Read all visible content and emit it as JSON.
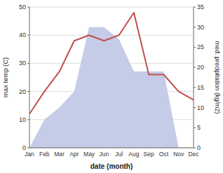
{
  "chart_data": {
    "type": "line",
    "categories": [
      "Jan",
      "Feb",
      "Mar",
      "Apr",
      "May",
      "Jun",
      "Jul",
      "Aug",
      "Sep",
      "Oct",
      "Nov",
      "Dec"
    ],
    "series": [
      {
        "type": "area",
        "axis": "y2",
        "color": "#c5cce8",
        "values": [
          0,
          7,
          10,
          14,
          30,
          30,
          27,
          19,
          19,
          19,
          0,
          0
        ]
      },
      {
        "type": "line",
        "color": "#c0504d",
        "values": [
          12,
          20,
          27,
          38,
          40,
          38,
          40,
          48,
          26,
          26,
          20,
          17
        ]
      }
    ],
    "xlabel": "date (month)",
    "ylabel": "max temp (C)",
    "y2label": "med. precipitation (kg/m2)",
    "ylim": [
      0,
      50
    ],
    "yticks": [
      0,
      10,
      20,
      30,
      40,
      50
    ],
    "y2lim": [
      0,
      35
    ],
    "y2ticks": [
      0,
      5,
      10,
      15,
      20,
      25,
      30,
      35
    ],
    "grid": true
  }
}
